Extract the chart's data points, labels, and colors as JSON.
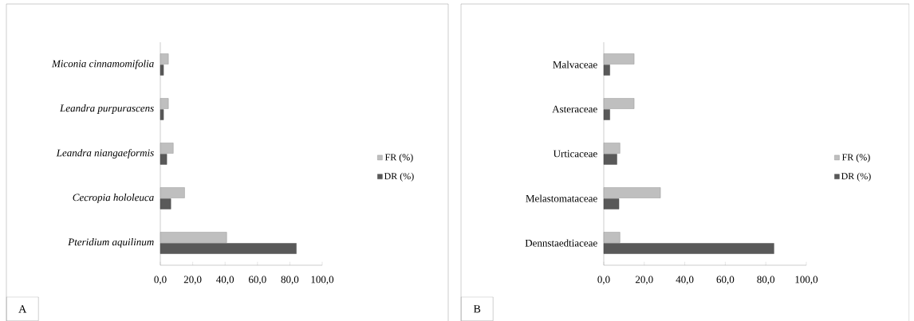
{
  "chart_data": [
    {
      "type": "bar",
      "orientation": "horizontal",
      "categories": [
        "Miconia cinnamomifolia",
        "Leandra purpurascens",
        "Leandra niangaeformis",
        "Cecropia hololeuca",
        "Pteridium aquilinum"
      ],
      "series": [
        {
          "name": "FR (%)",
          "color": "#bfbfbf",
          "values": [
            5,
            5,
            8,
            15,
            41
          ]
        },
        {
          "name": "DR (%)",
          "color": "#595959",
          "values": [
            2,
            2,
            4,
            6.5,
            84
          ]
        }
      ],
      "xlim": [
        0,
        100
      ],
      "xticks": [
        {
          "value": 0,
          "label": "0,0"
        },
        {
          "value": 20,
          "label": "20,0"
        },
        {
          "value": 40,
          "label": "40,0"
        },
        {
          "value": 60,
          "label": "60,0"
        },
        {
          "value": 80,
          "label": "80,0"
        },
        {
          "value": 100,
          "label": "100,0"
        }
      ],
      "legend": "right",
      "annotations": [
        "A"
      ]
    },
    {
      "type": "bar",
      "orientation": "horizontal",
      "categories": [
        "Malvaceae",
        "Asteraceae",
        "Urticaceae",
        "Melastomataceae",
        "Dennstaedtiaceae"
      ],
      "series": [
        {
          "name": "FR (%)",
          "color": "#bfbfbf",
          "values": [
            15,
            15,
            8,
            28,
            8
          ]
        },
        {
          "name": "DR (%)",
          "color": "#595959",
          "values": [
            3,
            3,
            6.5,
            7.5,
            84
          ]
        }
      ],
      "xlim": [
        0,
        100
      ],
      "xticks": [
        {
          "value": 0,
          "label": "0,0"
        },
        {
          "value": 20,
          "label": "20,0"
        },
        {
          "value": 40,
          "label": "40,0"
        },
        {
          "value": 60,
          "label": "60,0"
        },
        {
          "value": 80,
          "label": "80,0"
        },
        {
          "value": 100,
          "label": "100,0"
        }
      ],
      "legend": "right",
      "annotations": [
        "B"
      ]
    }
  ]
}
